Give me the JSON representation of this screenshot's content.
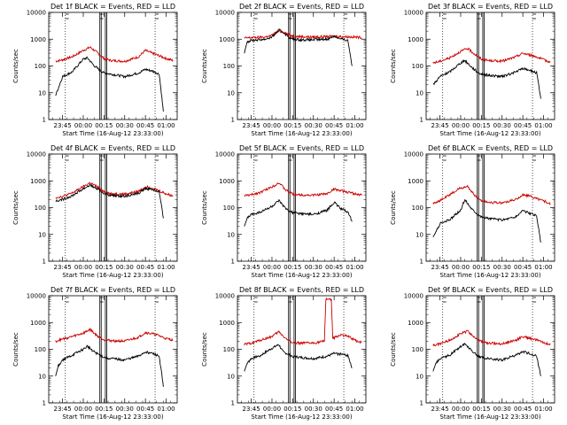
{
  "chart_data": [
    {
      "type": "line",
      "title": "Det 1f  BLACK = Events, RED = LLD",
      "xlabel": "Start Time (16-Aug-12 23:33:00)",
      "ylabel": "Counts/sec",
      "ylim": [
        1,
        10000
      ],
      "y_scale": "log",
      "x_ticks": [
        "23:45",
        "00:00",
        "00:15",
        "00:30",
        "00:45",
        "01:00"
      ],
      "y_ticks": [
        "1",
        "10",
        "100",
        "1000",
        "10000"
      ],
      "series": [
        {
          "color": "#cc0000",
          "x": [
            "23:40",
            "23:45",
            "23:52",
            "00:00",
            "00:05",
            "00:10",
            "00:15",
            "00:20",
            "00:30",
            "00:40",
            "00:45",
            "00:50",
            "00:55",
            "01:00",
            "01:05"
          ],
          "values": [
            150,
            170,
            220,
            380,
            500,
            320,
            190,
            160,
            150,
            220,
            380,
            300,
            240,
            190,
            160
          ]
        },
        {
          "color": "#000000",
          "x": [
            "23:40",
            "23:45",
            "23:52",
            "00:00",
            "00:03",
            "00:08",
            "00:12",
            "00:15",
            "00:20",
            "00:30",
            "00:40",
            "00:45",
            "00:50",
            "00:55",
            "00:58"
          ],
          "values": [
            8,
            40,
            60,
            180,
            200,
            100,
            70,
            55,
            50,
            40,
            55,
            75,
            65,
            50,
            2
          ]
        }
      ]
    },
    {
      "type": "line",
      "title": "Det 2f  BLACK = Events, RED = LLD",
      "xlabel": "Start Time (16-Aug-12 23:33:00)",
      "ylabel": "Counts/sec",
      "ylim": [
        1,
        10000
      ],
      "y_scale": "log",
      "x_ticks": [
        "23:45",
        "00:00",
        "00:15",
        "00:30",
        "00:45",
        "01:00"
      ],
      "y_ticks": [
        "1",
        "10",
        "100",
        "1000",
        "10000"
      ],
      "series": [
        {
          "color": "#cc0000",
          "x": [
            "23:40",
            "23:45",
            "23:55",
            "00:00",
            "00:05",
            "00:10",
            "00:15",
            "00:20",
            "00:30",
            "00:40",
            "00:45",
            "00:50",
            "01:00",
            "01:05"
          ],
          "values": [
            1100,
            1150,
            1200,
            1400,
            2000,
            1700,
            1300,
            1250,
            1200,
            1250,
            1300,
            1250,
            1200,
            1150
          ]
        },
        {
          "color": "#000000",
          "x": [
            "23:40",
            "23:42",
            "23:45",
            "23:55",
            "00:00",
            "00:05",
            "00:08",
            "00:12",
            "00:15",
            "00:20",
            "00:30",
            "00:40",
            "00:45",
            "00:50",
            "00:55",
            "00:58"
          ],
          "values": [
            300,
            800,
            900,
            1000,
            1200,
            2200,
            1900,
            1200,
            1000,
            950,
            950,
            1000,
            1300,
            1000,
            900,
            100
          ]
        }
      ]
    },
    {
      "type": "line",
      "title": "Det 3f  BLACK = Events, RED = LLD",
      "xlabel": "Start Time (16-Aug-12 23:33:00)",
      "ylabel": "Counts/sec",
      "ylim": [
        1,
        10000
      ],
      "y_scale": "log",
      "x_ticks": [
        "23:45",
        "00:00",
        "00:15",
        "00:30",
        "00:45",
        "01:00"
      ],
      "y_ticks": [
        "1",
        "10",
        "100",
        "1000",
        "10000"
      ],
      "series": [
        {
          "color": "#cc0000",
          "x": [
            "23:40",
            "23:45",
            "23:52",
            "00:00",
            "00:05",
            "00:10",
            "00:15",
            "00:20",
            "00:30",
            "00:40",
            "00:45",
            "00:50",
            "00:55",
            "01:00",
            "01:05"
          ],
          "values": [
            130,
            150,
            200,
            350,
            450,
            280,
            180,
            160,
            150,
            220,
            300,
            260,
            220,
            170,
            140
          ]
        },
        {
          "color": "#000000",
          "x": [
            "23:40",
            "23:45",
            "23:52",
            "00:00",
            "00:03",
            "00:08",
            "00:12",
            "00:15",
            "00:20",
            "00:30",
            "00:40",
            "00:45",
            "00:50",
            "00:55",
            "00:58"
          ],
          "values": [
            20,
            40,
            60,
            130,
            160,
            90,
            60,
            50,
            45,
            40,
            60,
            80,
            70,
            55,
            6
          ]
        }
      ]
    },
    {
      "type": "line",
      "title": "Det 4f  BLACK = Events, RED = LLD",
      "xlabel": "Start Time (16-Aug-12 23:33:00)",
      "ylabel": "Counts/sec",
      "ylim": [
        1,
        10000
      ],
      "y_scale": "log",
      "x_ticks": [
        "23:45",
        "00:00",
        "00:15",
        "00:30",
        "00:45",
        "01:00"
      ],
      "y_ticks": [
        "1",
        "10",
        "100",
        "1000",
        "10000"
      ],
      "series": [
        {
          "color": "#cc0000",
          "x": [
            "23:40",
            "23:45",
            "23:52",
            "00:00",
            "00:05",
            "00:10",
            "00:15",
            "00:20",
            "00:30",
            "00:40",
            "00:45",
            "00:50",
            "00:55",
            "01:00",
            "01:05"
          ],
          "values": [
            240,
            260,
            350,
            600,
            850,
            600,
            400,
            330,
            320,
            400,
            600,
            550,
            420,
            330,
            270
          ]
        },
        {
          "color": "#000000",
          "x": [
            "23:40",
            "23:45",
            "23:52",
            "00:00",
            "00:05",
            "00:10",
            "00:15",
            "00:20",
            "00:30",
            "00:40",
            "00:45",
            "00:50",
            "00:55",
            "00:58"
          ],
          "values": [
            180,
            200,
            280,
            500,
            700,
            500,
            340,
            280,
            270,
            340,
            520,
            480,
            380,
            40
          ]
        }
      ]
    },
    {
      "type": "line",
      "title": "Det 5f  BLACK = Events, RED = LLD",
      "xlabel": "Start Time (16-Aug-12 23:33:00)",
      "ylabel": "Counts/sec",
      "ylim": [
        1,
        10000
      ],
      "y_scale": "log",
      "x_ticks": [
        "23:45",
        "00:00",
        "00:15",
        "00:30",
        "00:45",
        "01:00"
      ],
      "y_ticks": [
        "1",
        "10",
        "100",
        "1000",
        "10000"
      ],
      "series": [
        {
          "color": "#cc0000",
          "x": [
            "23:40",
            "23:45",
            "23:52",
            "00:00",
            "00:05",
            "00:10",
            "00:15",
            "00:20",
            "00:30",
            "00:40",
            "00:45",
            "00:50",
            "00:55",
            "01:00",
            "01:05"
          ],
          "values": [
            280,
            300,
            380,
            600,
            850,
            450,
            320,
            300,
            290,
            330,
            500,
            420,
            380,
            330,
            290
          ]
        },
        {
          "color": "#000000",
          "x": [
            "23:40",
            "23:42",
            "23:45",
            "23:52",
            "00:00",
            "00:05",
            "00:10",
            "00:15",
            "00:20",
            "00:30",
            "00:40",
            "00:45",
            "00:50",
            "00:55",
            "00:58"
          ],
          "values": [
            20,
            40,
            55,
            70,
            110,
            180,
            90,
            65,
            60,
            55,
            80,
            160,
            90,
            70,
            30
          ]
        }
      ]
    },
    {
      "type": "line",
      "title": "Det 6f  BLACK = Events, RED = LLD",
      "xlabel": "Start Time (16-Aug-12 23:33:00)",
      "ylabel": "Counts/sec",
      "ylim": [
        1,
        10000
      ],
      "y_scale": "log",
      "x_ticks": [
        "23:45",
        "00:00",
        "00:15",
        "00:30",
        "00:45",
        "01:00"
      ],
      "y_ticks": [
        "1",
        "10",
        "100",
        "1000",
        "10000"
      ],
      "series": [
        {
          "color": "#cc0000",
          "x": [
            "23:40",
            "23:45",
            "23:52",
            "00:00",
            "00:05",
            "00:10",
            "00:15",
            "00:20",
            "00:30",
            "00:40",
            "00:45",
            "00:50",
            "00:55",
            "01:00",
            "01:05"
          ],
          "values": [
            150,
            180,
            300,
            550,
            600,
            300,
            180,
            160,
            150,
            200,
            300,
            270,
            220,
            180,
            140
          ]
        },
        {
          "color": "#000000",
          "x": [
            "23:40",
            "23:42",
            "23:45",
            "23:52",
            "00:00",
            "00:03",
            "00:08",
            "00:12",
            "00:15",
            "00:20",
            "00:30",
            "00:40",
            "00:45",
            "00:50",
            "00:55",
            "00:58"
          ],
          "values": [
            8,
            12,
            25,
            35,
            80,
            200,
            90,
            60,
            45,
            40,
            35,
            45,
            80,
            60,
            50,
            5
          ]
        }
      ]
    },
    {
      "type": "line",
      "title": "Det 7f  BLACK = Events, RED = LLD",
      "xlabel": "Start Time (16-Aug-12 23:33:00)",
      "ylabel": "Counts/sec",
      "ylim": [
        1,
        10000
      ],
      "y_scale": "log",
      "x_ticks": [
        "23:45",
        "00:00",
        "00:15",
        "00:30",
        "00:45",
        "01:00"
      ],
      "y_ticks": [
        "1",
        "10",
        "100",
        "1000",
        "10000"
      ],
      "series": [
        {
          "color": "#cc0000",
          "x": [
            "23:40",
            "23:45",
            "23:52",
            "00:00",
            "00:05",
            "00:10",
            "00:15",
            "00:20",
            "00:30",
            "00:40",
            "00:45",
            "00:50",
            "00:55",
            "01:00",
            "01:05"
          ],
          "values": [
            200,
            240,
            300,
            400,
            550,
            320,
            230,
            210,
            200,
            280,
            420,
            380,
            320,
            250,
            220
          ]
        },
        {
          "color": "#000000",
          "x": [
            "23:40",
            "23:42",
            "23:45",
            "23:52",
            "00:00",
            "00:03",
            "00:08",
            "00:12",
            "00:15",
            "00:20",
            "00:30",
            "00:40",
            "00:45",
            "00:50",
            "00:55",
            "00:58"
          ],
          "values": [
            10,
            25,
            40,
            60,
            100,
            130,
            80,
            60,
            50,
            45,
            40,
            55,
            80,
            70,
            55,
            4
          ]
        }
      ]
    },
    {
      "type": "line",
      "title": "Det 8f  BLACK = Events, RED = LLD",
      "xlabel": "Start Time (16-Aug-12 23:33:00)",
      "ylabel": "Counts/sec",
      "ylim": [
        1,
        10000
      ],
      "y_scale": "log",
      "x_ticks": [
        "23:45",
        "00:00",
        "00:15",
        "00:30",
        "00:45",
        "01:00"
      ],
      "y_ticks": [
        "1",
        "10",
        "100",
        "1000",
        "10000"
      ],
      "series": [
        {
          "color": "#cc0000",
          "x": [
            "23:40",
            "23:45",
            "23:52",
            "00:00",
            "00:05",
            "00:10",
            "00:15",
            "00:20",
            "00:30",
            "00:38",
            "00:39",
            "00:43",
            "00:44",
            "00:50",
            "00:55",
            "01:00",
            "01:05"
          ],
          "values": [
            150,
            170,
            220,
            300,
            450,
            250,
            180,
            170,
            170,
            200,
            7500,
            7500,
            250,
            350,
            300,
            220,
            180
          ]
        },
        {
          "color": "#000000",
          "x": [
            "23:40",
            "23:42",
            "23:45",
            "23:52",
            "00:00",
            "00:05",
            "00:08",
            "00:12",
            "00:15",
            "00:20",
            "00:30",
            "00:40",
            "00:45",
            "00:50",
            "00:55",
            "00:58"
          ],
          "values": [
            15,
            30,
            45,
            60,
            110,
            150,
            80,
            65,
            55,
            50,
            45,
            55,
            70,
            65,
            60,
            20
          ]
        }
      ]
    },
    {
      "type": "line",
      "title": "Det 9f  BLACK = Events, RED = LLD",
      "xlabel": "Start Time (16-Aug-12 23:33:00)",
      "ylabel": "Counts/sec",
      "ylim": [
        1,
        10000
      ],
      "y_scale": "log",
      "x_ticks": [
        "23:45",
        "00:00",
        "00:15",
        "00:30",
        "00:45",
        "01:00"
      ],
      "y_ticks": [
        "1",
        "10",
        "100",
        "1000",
        "10000"
      ],
      "series": [
        {
          "color": "#cc0000",
          "x": [
            "23:40",
            "23:45",
            "23:52",
            "00:00",
            "00:05",
            "00:10",
            "00:15",
            "00:20",
            "00:30",
            "00:40",
            "00:45",
            "00:50",
            "00:55",
            "01:00",
            "01:05"
          ],
          "values": [
            140,
            160,
            220,
            380,
            480,
            280,
            190,
            170,
            160,
            220,
            300,
            260,
            220,
            180,
            150
          ]
        },
        {
          "color": "#000000",
          "x": [
            "23:40",
            "23:42",
            "23:45",
            "23:52",
            "00:00",
            "00:03",
            "00:08",
            "00:12",
            "00:15",
            "00:20",
            "00:30",
            "00:40",
            "00:45",
            "00:50",
            "00:55",
            "00:58"
          ],
          "values": [
            15,
            30,
            45,
            60,
            130,
            160,
            90,
            60,
            50,
            45,
            40,
            60,
            80,
            70,
            55,
            10
          ]
        }
      ]
    }
  ]
}
